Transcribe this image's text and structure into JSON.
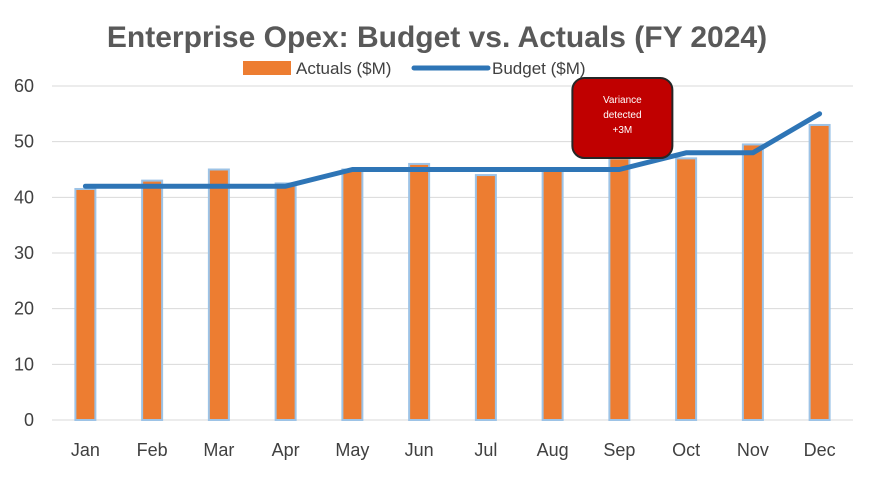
{
  "chart_data": {
    "type": "bar",
    "title": "Enterprise Opex: Budget vs. Actuals (FY 2024)",
    "xlabel": "",
    "ylabel": "",
    "ylim": [
      0,
      60
    ],
    "yticks": [
      0,
      10,
      20,
      30,
      40,
      50,
      60
    ],
    "grid": true,
    "legend_position": "top-center",
    "categories": [
      "Jan",
      "Feb",
      "Mar",
      "Apr",
      "May",
      "Jun",
      "Jul",
      "Aug",
      "Sep",
      "Oct",
      "Nov",
      "Dec"
    ],
    "series": [
      {
        "name": "Actuals ($M)",
        "type": "bar",
        "color": "#ed7d31",
        "border_color": "#9dc3e6",
        "values": [
          41.5,
          43,
          45,
          42.5,
          45,
          46,
          44,
          45,
          47,
          47,
          49.5,
          53
        ]
      },
      {
        "name": "Budget ($M)",
        "type": "line",
        "color": "#2e75b6",
        "values": [
          42,
          42,
          42,
          42,
          45,
          45,
          45,
          45,
          45,
          48,
          48,
          55
        ]
      }
    ],
    "annotations": [
      {
        "lines": [
          "Variance",
          "detected",
          "+3M"
        ],
        "category": "Sep",
        "fill": "#c00000",
        "border": "#262626"
      }
    ]
  }
}
